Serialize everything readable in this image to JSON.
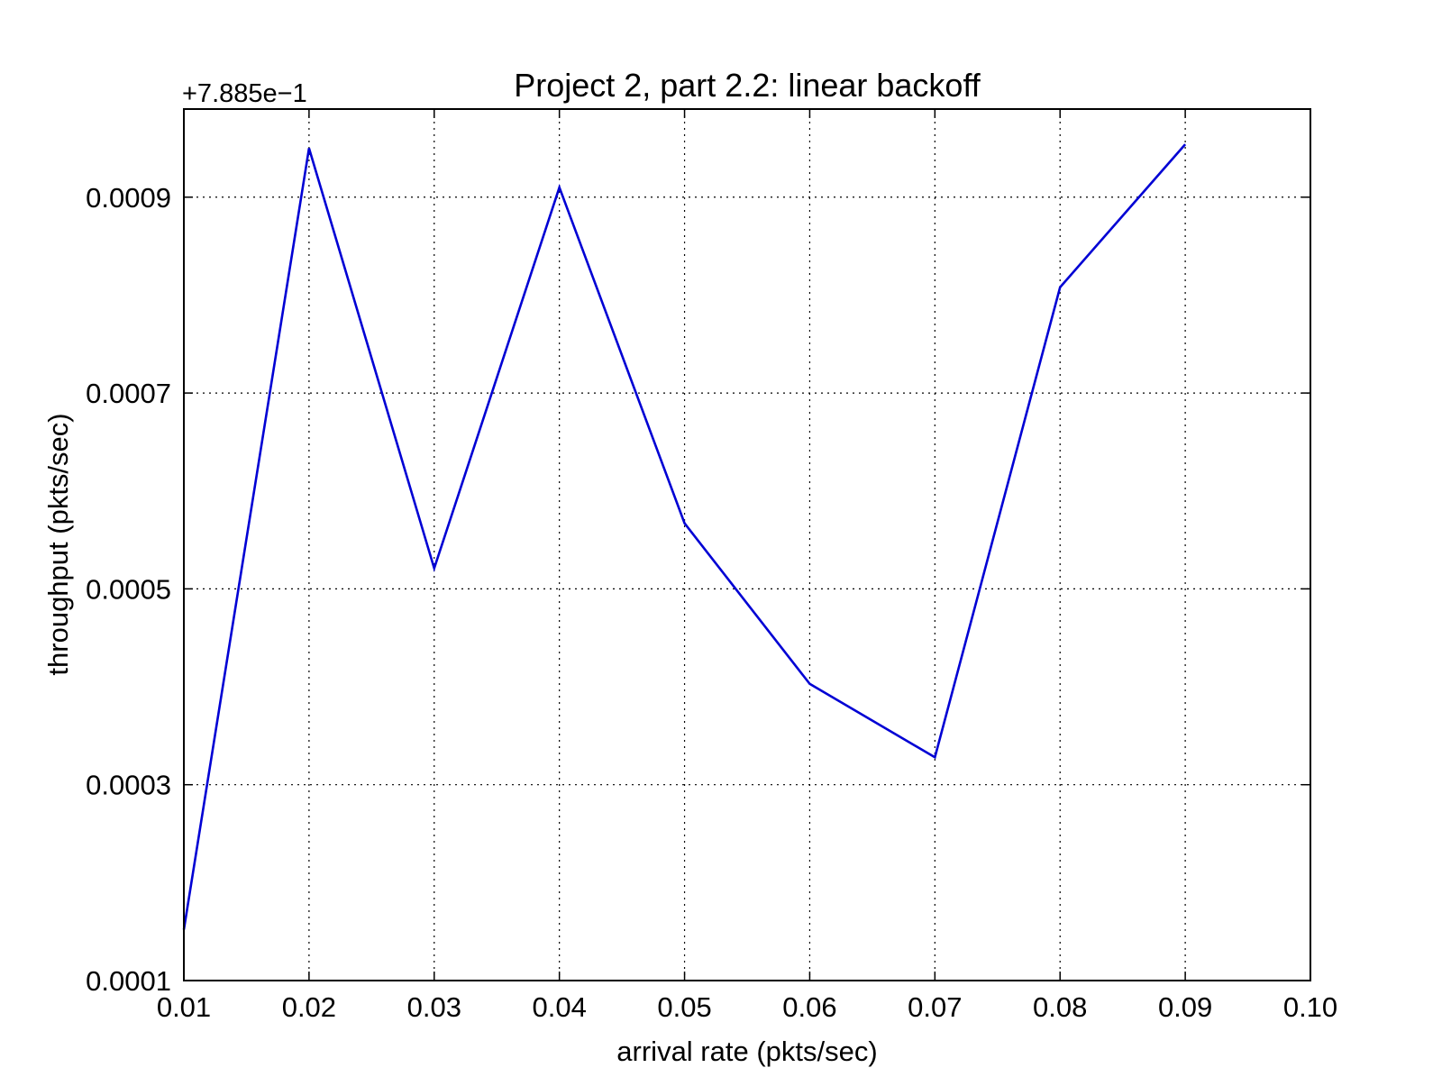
{
  "chart_data": {
    "type": "line",
    "title": "Project 2, part 2.2: linear backoff",
    "xlabel": "arrival rate (pkts/sec)",
    "ylabel": "throughput (pkts/sec)",
    "y_offset_label": "+7.885e−1",
    "xlim": [
      0.01,
      0.1
    ],
    "ylim": [
      0.0001,
      0.00099
    ],
    "x_ticks": [
      0.01,
      0.02,
      0.03,
      0.04,
      0.05,
      0.06,
      0.07,
      0.08,
      0.09,
      0.1
    ],
    "x_tick_labels": [
      "0.01",
      "0.02",
      "0.03",
      "0.04",
      "0.05",
      "0.06",
      "0.07",
      "0.08",
      "0.09",
      "0.10"
    ],
    "y_ticks": [
      0.0001,
      0.0003,
      0.0005,
      0.0007,
      0.0009
    ],
    "y_tick_labels": [
      "0.0001",
      "0.0003",
      "0.0005",
      "0.0007",
      "0.0009"
    ],
    "grid": true,
    "series": [
      {
        "color": "#0000d4",
        "x": [
          0.01,
          0.02,
          0.03,
          0.04,
          0.05,
          0.06,
          0.07,
          0.08,
          0.09
        ],
        "y": [
          0.000152,
          0.00095,
          0.000521,
          0.00091,
          0.000567,
          0.000403,
          0.000328,
          0.000808,
          0.000954
        ]
      }
    ]
  }
}
